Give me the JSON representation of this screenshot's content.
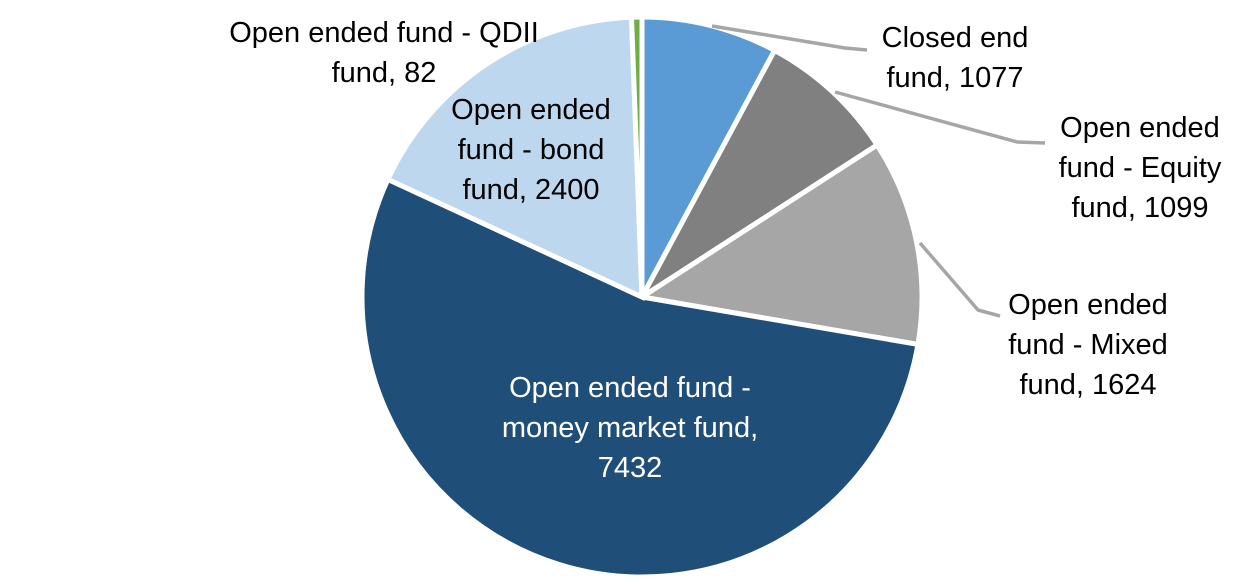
{
  "chart_data": {
    "type": "pie",
    "title": "",
    "legend": "none",
    "start_angle_deg": 0,
    "direction": "clockwise",
    "background": "#FFFFFF",
    "slice_border_color": "#FFFFFF",
    "leader_line_color": "#A6A6A6",
    "slices": [
      {
        "id": "closed_end",
        "label": "Closed end fund",
        "value": 1077,
        "color": "#5B9BD5",
        "label_color": "#000000",
        "callout": "Closed end\nfund, 1077"
      },
      {
        "id": "equity",
        "label": "Open ended fund - Equity fund",
        "value": 1099,
        "color": "#808080",
        "label_color": "#000000",
        "callout": "Open ended\nfund - Equity\nfund, 1099"
      },
      {
        "id": "mixed",
        "label": "Open ended fund - Mixed fund",
        "value": 1624,
        "color": "#A6A6A6",
        "label_color": "#000000",
        "callout": "Open ended\nfund - Mixed\nfund, 1624"
      },
      {
        "id": "money_market",
        "label": "Open ended fund - money market fund",
        "value": 7432,
        "color": "#1F4E79",
        "label_color": "#FFFFFF",
        "callout": "Open ended fund -\nmoney market fund,\n7432"
      },
      {
        "id": "bond",
        "label": "Open ended fund - bond fund",
        "value": 2400,
        "color": "#BDD7EE",
        "label_color": "#000000",
        "callout": "Open ended\nfund - bond\nfund, 2400"
      },
      {
        "id": "qdii",
        "label": "Open ended fund - QDII fund",
        "value": 82,
        "color": "#70AD47",
        "label_color": "#000000",
        "callout": "Open ended fund - QDII\nfund, 82"
      }
    ]
  }
}
